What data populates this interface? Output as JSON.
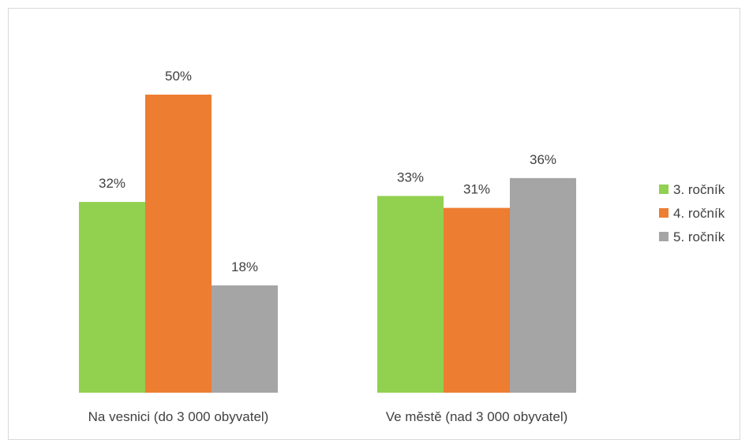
{
  "chart_data": {
    "type": "bar",
    "title": "",
    "xlabel": "",
    "ylabel": "",
    "ylim": [
      0,
      50
    ],
    "grid": false,
    "legend_position": "right",
    "categories": [
      "Na vesnici (do 3 000 obyvatel)",
      "Ve městě (nad 3 000 obyvatel)"
    ],
    "series": [
      {
        "name": "3. ročník",
        "color": "#92d050",
        "values": [
          32,
          33
        ],
        "labels": [
          "32%",
          "33%"
        ]
      },
      {
        "name": "4. ročník",
        "color": "#ed7d31",
        "values": [
          50,
          31
        ],
        "labels": [
          "50%",
          "31%"
        ]
      },
      {
        "name": "5. ročník",
        "color": "#a5a5a5",
        "values": [
          18,
          36
        ],
        "labels": [
          "18%",
          "36%"
        ]
      }
    ]
  }
}
